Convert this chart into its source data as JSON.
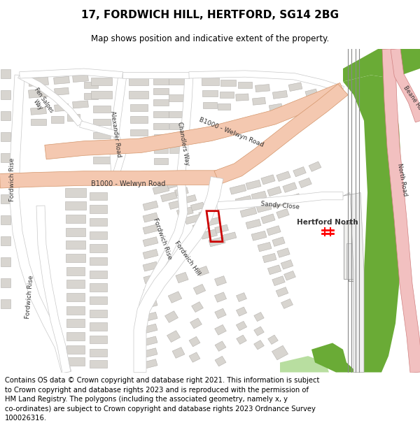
{
  "title": "17, FORDWICH HILL, HERTFORD, SG14 2BG",
  "subtitle": "Map shows position and indicative extent of the property.",
  "footer": "Contains OS data © Crown copyright and database right 2021. This information is subject\nto Crown copyright and database rights 2023 and is reproduced with the permission of\nHM Land Registry. The polygons (including the associated geometry, namely x, y\nco-ordinates) are subject to Crown copyright and database rights 2023 Ordnance Survey\n100026316.",
  "map_bg": "#f5f4f1",
  "road_main_color": "#f4c8b0",
  "road_main_edge": "#d4956a",
  "road_minor_color": "#ffffff",
  "road_minor_edge": "#c8c8c8",
  "building_color": "#d8d5d0",
  "building_edge": "#b5b2ae",
  "green_dark": "#6aab36",
  "green_light": "#b8dea0",
  "plot_color": "#cc0000",
  "north_road_color": "#f2c0c0",
  "north_road_edge": "#d08080",
  "title_fontsize": 11,
  "subtitle_fontsize": 8.5,
  "footer_fontsize": 7.2,
  "label_color": "#333333",
  "label_fontsize": 6.5
}
